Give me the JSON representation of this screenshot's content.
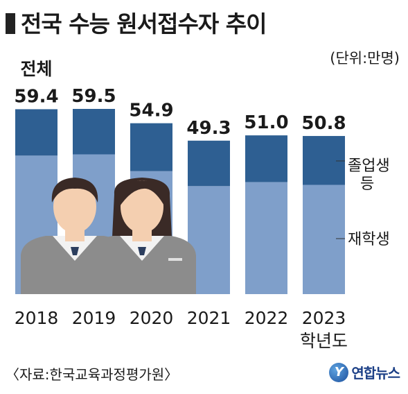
{
  "header": {
    "title": "전국 수능 원서접수자 추이",
    "unit": "(단위:만명)"
  },
  "footer": {
    "source": "〈자료:한국교육과정평가원〉",
    "logo_text": "연합뉴스",
    "logo_mark": "Y"
  },
  "colors": {
    "graduate": "#2e5f92",
    "enrolled": "#7f9fca",
    "background": "#ffffff"
  },
  "chart_data": {
    "type": "bar",
    "stacked": true,
    "total_label": "전체",
    "x_suffix": "학년도",
    "categories": [
      "2018",
      "2019",
      "2020",
      "2021",
      "2022",
      "2023"
    ],
    "totals": [
      59.4,
      59.5,
      54.9,
      49.3,
      51.0,
      50.8
    ],
    "series": [
      {
        "name": "재학생",
        "values": [
          44.5,
          44.9,
          39.5,
          34.7,
          36.0,
          35.1
        ]
      },
      {
        "name": "졸업생 등",
        "values": [
          14.9,
          14.6,
          15.4,
          14.6,
          15.0,
          15.7
        ]
      }
    ],
    "series_labels": {
      "graduate_line1": "졸업생",
      "graduate_line2": "등",
      "enrolled": "재학생"
    },
    "ylim": [
      0,
      59.5
    ]
  }
}
